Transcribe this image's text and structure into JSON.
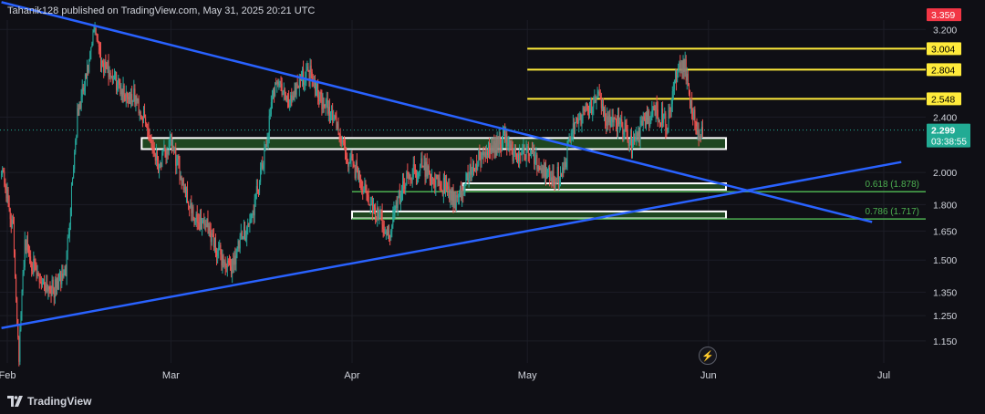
{
  "header": {
    "publisher": "Tahanik128 published on TradingView.com, May 31, 2025 20:21 UTC"
  },
  "footer": {
    "brand": "TradingView"
  },
  "colors": {
    "background": "#0f0f15",
    "up_candle": "#26a69a",
    "down_candle": "#ef5350",
    "trendline": "#2962ff",
    "resistance": "#ffeb3b",
    "fib": "#4caf50",
    "zone_fill": "#1e4620",
    "price_red": "#f23645",
    "price_green": "#22ab94"
  },
  "chart_data": {
    "type": "candlestick",
    "y_scale": "log",
    "ylim": [
      1.07,
      3.3
    ],
    "y_ticks": [
      "3.200",
      "2.400",
      "2.000",
      "1.800",
      "1.650",
      "1.500",
      "1.350",
      "1.250",
      "1.150"
    ],
    "x_ticks": [
      "Feb",
      "Mar",
      "Apr",
      "May",
      "Jun",
      "Jul"
    ],
    "resistance_levels": [
      {
        "label": "3.004",
        "value": 3.004
      },
      {
        "label": "2.804",
        "value": 2.804
      },
      {
        "label": "2.548",
        "value": 2.548
      }
    ],
    "fib_levels": [
      {
        "label": "0.618 (1.878)",
        "value": 1.878
      },
      {
        "label": "0.786 (1.717)",
        "value": 1.717
      }
    ],
    "zones": [
      {
        "date_start": "2025-02-24",
        "date_end": "2025-06-04",
        "low": 2.16,
        "high": 2.24
      },
      {
        "date_start": "2025-04-20",
        "date_end": "2025-06-04",
        "low": 1.89,
        "high": 1.93
      },
      {
        "date_start": "2025-04-01",
        "date_end": "2025-06-04",
        "low": 1.72,
        "high": 1.76
      }
    ],
    "trendlines": [
      {
        "x": [
          "2025-01-31",
          "2025-06-29"
        ],
        "y": [
          3.5,
          1.7
        ]
      },
      {
        "x": [
          "2025-01-31",
          "2025-07-04"
        ],
        "y": [
          1.2,
          2.07
        ]
      }
    ],
    "last_price": {
      "value": 2.299,
      "label": "2.299",
      "countdown": "03:38:55"
    },
    "high_price": {
      "value": 3.359,
      "label": "3.359"
    },
    "series": [
      {
        "points": [
          [
            "2025-01-31",
            2.05
          ],
          [
            "2025-02-02",
            1.65
          ],
          [
            "2025-02-03",
            1.1
          ],
          [
            "2025-02-04",
            1.6
          ],
          [
            "2025-02-06",
            1.42
          ],
          [
            "2025-02-09",
            1.36
          ],
          [
            "2025-02-11",
            1.45
          ],
          [
            "2025-02-12",
            1.9
          ],
          [
            "2025-02-13",
            2.4
          ],
          [
            "2025-02-15",
            2.85
          ],
          [
            "2025-02-16",
            3.25
          ],
          [
            "2025-02-17",
            2.9
          ],
          [
            "2025-02-19",
            2.75
          ],
          [
            "2025-02-21",
            2.6
          ],
          [
            "2025-02-23",
            2.55
          ],
          [
            "2025-02-25",
            2.3
          ],
          [
            "2025-02-27",
            2.05
          ],
          [
            "2025-03-01",
            2.2
          ],
          [
            "2025-03-03",
            1.95
          ],
          [
            "2025-03-05",
            1.7
          ],
          [
            "2025-03-07",
            1.7
          ],
          [
            "2025-03-09",
            1.55
          ],
          [
            "2025-03-11",
            1.45
          ],
          [
            "2025-03-13",
            1.6
          ],
          [
            "2025-03-15",
            1.75
          ],
          [
            "2025-03-17",
            2.1
          ],
          [
            "2025-03-19",
            2.75
          ],
          [
            "2025-03-21",
            2.5
          ],
          [
            "2025-03-23",
            2.72
          ],
          [
            "2025-03-25",
            2.8
          ],
          [
            "2025-03-27",
            2.5
          ],
          [
            "2025-03-29",
            2.4
          ],
          [
            "2025-03-31",
            2.1
          ],
          [
            "2025-04-02",
            2.0
          ],
          [
            "2025-04-04",
            1.8
          ],
          [
            "2025-04-06",
            1.72
          ],
          [
            "2025-04-07",
            1.6
          ],
          [
            "2025-04-09",
            1.85
          ],
          [
            "2025-04-11",
            2.0
          ],
          [
            "2025-04-13",
            2.05
          ],
          [
            "2025-04-15",
            1.95
          ],
          [
            "2025-04-17",
            1.9
          ],
          [
            "2025-04-19",
            1.8
          ],
          [
            "2025-04-21",
            2.0
          ],
          [
            "2025-04-23",
            2.1
          ],
          [
            "2025-04-25",
            2.15
          ],
          [
            "2025-04-27",
            2.25
          ],
          [
            "2025-04-29",
            2.1
          ],
          [
            "2025-05-01",
            2.15
          ],
          [
            "2025-05-03",
            2.05
          ],
          [
            "2025-05-05",
            1.98
          ],
          [
            "2025-05-07",
            2.0
          ],
          [
            "2025-05-09",
            2.35
          ],
          [
            "2025-05-11",
            2.45
          ],
          [
            "2025-05-13",
            2.55
          ],
          [
            "2025-05-15",
            2.35
          ],
          [
            "2025-05-17",
            2.35
          ],
          [
            "2025-05-19",
            2.2
          ],
          [
            "2025-05-21",
            2.35
          ],
          [
            "2025-05-23",
            2.45
          ],
          [
            "2025-05-25",
            2.35
          ],
          [
            "2025-05-27",
            2.9
          ],
          [
            "2025-05-28",
            2.85
          ],
          [
            "2025-05-29",
            2.5
          ],
          [
            "2025-05-30",
            2.3
          ],
          [
            "2025-05-31",
            2.299
          ]
        ]
      }
    ]
  }
}
